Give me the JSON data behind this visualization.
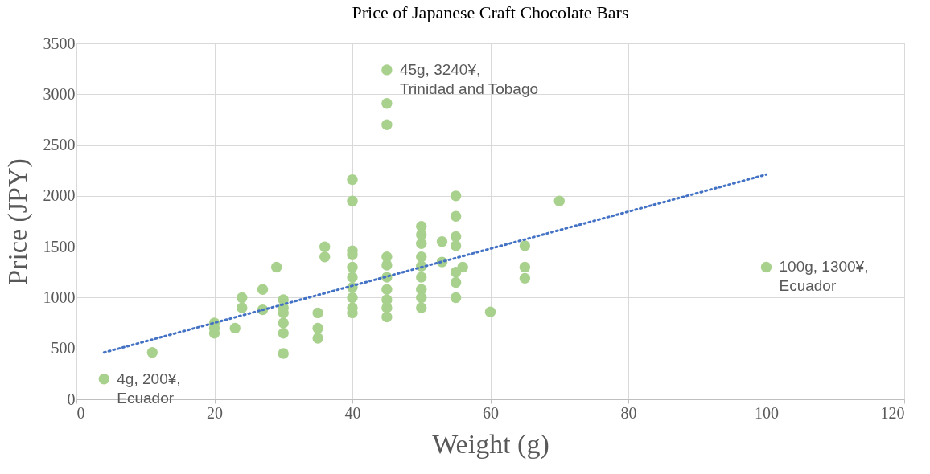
{
  "chart_data": {
    "type": "scatter",
    "title": "Price of Japanese Craft Chocolate Bars",
    "xlabel": "Weight (g)",
    "ylabel": "Price (JPY)",
    "series": [
      {
        "color": "#a9d18e",
        "x": [
          4,
          11,
          20,
          20,
          20,
          23,
          24,
          24,
          27,
          27,
          29,
          30,
          30,
          30,
          30,
          30,
          30,
          35,
          35,
          35,
          36,
          36,
          40,
          40,
          40,
          40,
          40,
          40,
          40,
          40,
          40,
          40,
          45,
          45,
          45,
          45,
          45,
          45,
          45,
          45,
          45,
          45,
          50,
          50,
          50,
          50,
          50,
          50,
          50,
          50,
          50,
          53,
          53,
          55,
          55,
          55,
          55,
          55,
          55,
          55,
          56,
          60,
          65,
          65,
          65,
          70,
          100
        ],
        "values": [
          200,
          460,
          750,
          700,
          650,
          700,
          1000,
          900,
          1080,
          880,
          1300,
          980,
          900,
          850,
          750,
          650,
          450,
          850,
          700,
          600,
          1500,
          1400,
          2160,
          1950,
          1460,
          1420,
          1300,
          1200,
          1100,
          1000,
          900,
          850,
          3240,
          2910,
          2700,
          1400,
          1320,
          1200,
          1080,
          980,
          900,
          810,
          1700,
          1620,
          1530,
          1400,
          1310,
          1200,
          1080,
          1000,
          900,
          1550,
          1350,
          2000,
          1800,
          1600,
          1510,
          1250,
          1150,
          1000,
          1300,
          860,
          1510,
          1300,
          1190,
          1950,
          1300
        ]
      },
      {
        "type": "line",
        "color": "#4472c4",
        "line_style": "dotted",
        "marker": "none",
        "x": [
          4,
          100
        ],
        "values": [
          460,
          2210
        ]
      }
    ],
    "xlim": [
      0,
      120
    ],
    "xticks": [
      0,
      20,
      40,
      60,
      80,
      100,
      120
    ],
    "ylim": [
      0,
      3500
    ],
    "yticks": [
      0,
      500,
      1000,
      1500,
      2000,
      2500,
      3000,
      3500
    ],
    "grid": true,
    "marker": "circle",
    "annotations": [
      {
        "text": "4g, 200¥,\nEcuador",
        "x": 4,
        "y": 200
      },
      {
        "text": "45g, 3240¥,\nTrinidad and Tobago",
        "x": 45,
        "y": 3240
      },
      {
        "text": "100g, 1300¥,\nEcuador",
        "x": 100,
        "y": 1300
      }
    ]
  }
}
